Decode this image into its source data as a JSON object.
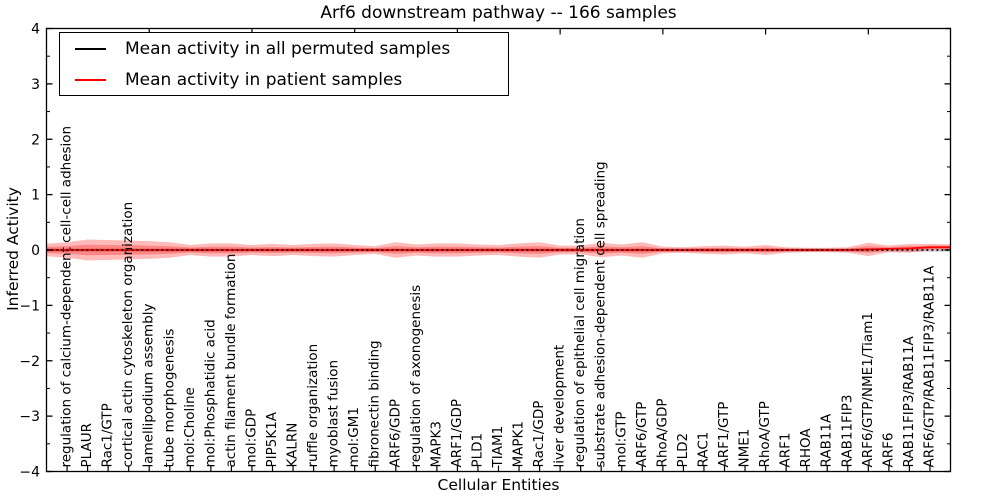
{
  "title": "Arf6 downstream pathway -- 166 samples",
  "axes": {
    "x_label": "Cellular Entities",
    "y_label": "Inferred Activity"
  },
  "legend": {
    "entries": [
      {
        "label": "Mean activity in all permuted samples",
        "color": "#000000"
      },
      {
        "label": "Mean activity in patient samples",
        "color": "#ff0000"
      }
    ],
    "position": "upper left"
  },
  "chart_data": {
    "type": "line",
    "title": "Arf6 downstream pathway -- 166 samples",
    "xlabel": "Cellular Entities",
    "ylabel": "Inferred Activity",
    "ylim": [
      -4,
      4
    ],
    "yticks": [
      4,
      3,
      2,
      1,
      0,
      -1,
      -2,
      -3,
      -4
    ],
    "ytick_minor_step": 0.5,
    "grid": false,
    "legend_position": "upper left",
    "categories": [
      "regulation of calcium-dependent cell-cell adhesion",
      "PLAUR",
      "Rac1/GTP",
      "cortical actin cytoskeleton organization",
      "lamellipodium assembly",
      "tube morphogenesis",
      "mol:Choline",
      "mol:Phosphatidic acid",
      "actin filament bundle formation",
      "mol:GDP",
      "PIP5K1A",
      "KALRN",
      "ruffle organization",
      "myoblast fusion",
      "mol:GM1",
      "fibronectin binding",
      "ARF6/GDP",
      "regulation of axonogenesis",
      "MAPK3",
      "ARF1/GDP",
      "PLD1",
      "TIAM1",
      "MAPK1",
      "Rac1/GDP",
      "liver development",
      "regulation of epithelial cell migration",
      "substrate adhesion-dependent cell spreading",
      "mol:GTP",
      "ARF6/GTP",
      "RhoA/GDP",
      "PLD2",
      "RAC1",
      "ARF1/GTP",
      "NME1",
      "RhoA/GTP",
      "ARF1",
      "RHOA",
      "RAB11A",
      "RAB11FIP3",
      "ARF6/GTP/NME1/Tiam1",
      "ARF6",
      "RAB11FIP3/RAB11A",
      "ARF6/GTP/RAB11FIP3/RAB11A"
    ],
    "series": [
      {
        "name": "Mean activity in all permuted samples",
        "color": "#000000",
        "style": "dotted",
        "values": [
          0,
          0,
          0,
          0,
          0,
          0,
          0,
          0,
          0,
          0,
          0,
          0,
          0,
          0,
          0,
          0,
          0,
          0,
          0,
          0,
          0,
          0,
          0,
          0,
          0,
          0,
          0,
          0,
          0,
          0,
          0,
          0,
          0,
          0,
          0,
          0,
          0,
          0,
          0,
          0,
          0,
          0,
          0
        ]
      },
      {
        "name": "Mean activity in patient samples",
        "color": "#ff0000",
        "style": "solid",
        "values": [
          0,
          0,
          0,
          0,
          0,
          0,
          0,
          0,
          0,
          0,
          0,
          0,
          0,
          0,
          0,
          0,
          0,
          0,
          0,
          0,
          0,
          0,
          0,
          0,
          0,
          0,
          0,
          0,
          0,
          0,
          0,
          0,
          0,
          0,
          0,
          0,
          0,
          0,
          0,
          0.01,
          0.02,
          0.03,
          0.05
        ]
      }
    ],
    "patient_band_halfwidth": [
      0.14,
      0.19,
      0.18,
      0.17,
      0.16,
      0.14,
      0.09,
      0.12,
      0.12,
      0.09,
      0.11,
      0.09,
      0.11,
      0.12,
      0.09,
      0.07,
      0.14,
      0.1,
      0.12,
      0.12,
      0.1,
      0.09,
      0.12,
      0.14,
      0.08,
      0.08,
      0.13,
      0.1,
      0.14,
      0.06,
      0.05,
      0.07,
      0.08,
      0.06,
      0.09,
      0.05,
      0.04,
      0.04,
      0.05,
      0.12,
      0.06,
      0.08,
      0.06
    ],
    "inner_band_ratio": 0.5,
    "permuted_band_halfwidth": 0.035,
    "band_color": "#ff0000",
    "band_alpha": 0.27,
    "permuted_band_color": "#000000",
    "permuted_band_alpha": 0.14,
    "top_tick_indices": [
      4,
      9,
      14,
      19,
      24,
      29,
      34,
      39
    ]
  }
}
